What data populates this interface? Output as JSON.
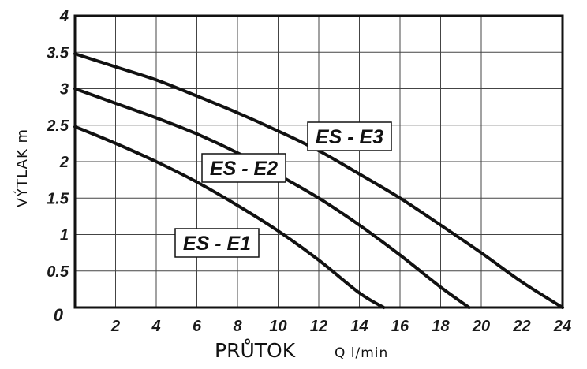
{
  "chart_data": {
    "type": "line",
    "xlabel": "PRŮTOK",
    "xunit": "Q l/min",
    "ylabel": "VÝTLAK m",
    "xlim": [
      0,
      24
    ],
    "ylim": [
      0,
      4
    ],
    "xticks": [
      "2",
      "4",
      "6",
      "8",
      "10",
      "12",
      "14",
      "16",
      "18",
      "20",
      "22",
      "24"
    ],
    "yticks": [
      "0",
      "0.5",
      "1",
      "1.5",
      "2",
      "2.5",
      "3",
      "3.5",
      "4"
    ],
    "grid": true,
    "series": [
      {
        "name": "ES - E1",
        "x": [
          0,
          2,
          4,
          6,
          8,
          10,
          12,
          14,
          15.2
        ],
        "y": [
          2.48,
          2.25,
          2.0,
          1.72,
          1.4,
          1.05,
          0.65,
          0.2,
          0
        ]
      },
      {
        "name": "ES - E2",
        "x": [
          0,
          2,
          4,
          6,
          8,
          10,
          12,
          14,
          16,
          18,
          19.4
        ],
        "y": [
          3.0,
          2.8,
          2.6,
          2.38,
          2.12,
          1.82,
          1.5,
          1.13,
          0.72,
          0.28,
          0
        ]
      },
      {
        "name": "ES - E3",
        "x": [
          0,
          2,
          4,
          6,
          8,
          10,
          12,
          14,
          16,
          18,
          20,
          22,
          24
        ],
        "y": [
          3.48,
          3.3,
          3.12,
          2.9,
          2.67,
          2.42,
          2.15,
          1.83,
          1.5,
          1.13,
          0.75,
          0.35,
          0
        ]
      }
    ]
  }
}
